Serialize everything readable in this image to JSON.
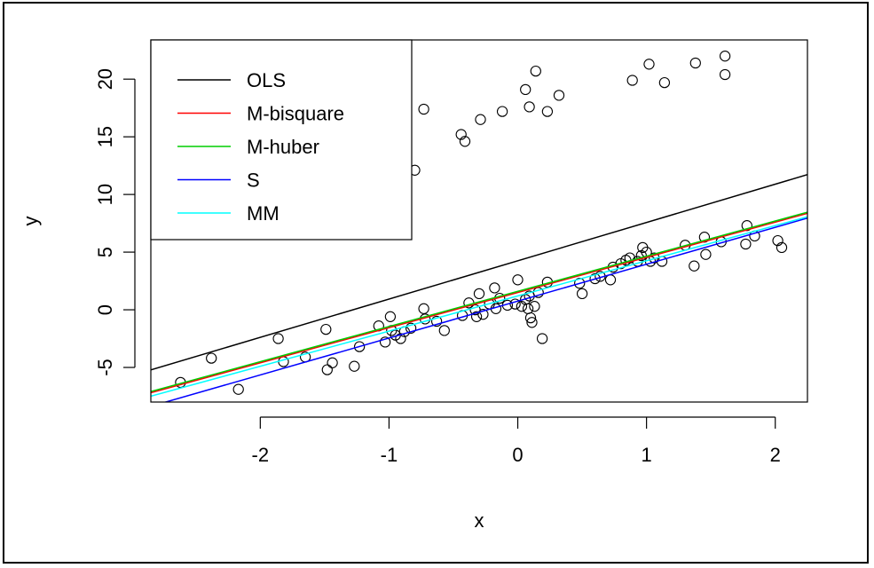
{
  "chart_data": {
    "type": "scatter",
    "title": "",
    "xlabel": "x",
    "ylabel": "y",
    "xlim": [
      -2.85,
      2.25
    ],
    "ylim": [
      -8.0,
      23.4
    ],
    "xticks": [
      -2,
      -1,
      0,
      1,
      2
    ],
    "yticks": [
      -5,
      0,
      5,
      10,
      15,
      20
    ],
    "xtick_labels": [
      "-2",
      "-1",
      "0",
      "1",
      "2"
    ],
    "ytick_labels": [
      "-5",
      "0",
      "5",
      "10",
      "15",
      "20"
    ],
    "grid": false,
    "legend_position": "top-left",
    "point_color": "#000000",
    "points": [
      {
        "x": -2.62,
        "y": -6.3
      },
      {
        "x": -2.38,
        "y": -4.2
      },
      {
        "x": -2.17,
        "y": -6.9
      },
      {
        "x": -1.86,
        "y": -2.5
      },
      {
        "x": -1.82,
        "y": -4.5
      },
      {
        "x": -1.65,
        "y": -4.1
      },
      {
        "x": -1.49,
        "y": -1.7
      },
      {
        "x": -1.48,
        "y": -5.2
      },
      {
        "x": -1.44,
        "y": -4.6
      },
      {
        "x": -1.27,
        "y": -4.9
      },
      {
        "x": -1.23,
        "y": -3.2
      },
      {
        "x": -1.08,
        "y": -1.4
      },
      {
        "x": -1.03,
        "y": -2.8
      },
      {
        "x": -0.99,
        "y": -0.6
      },
      {
        "x": -0.98,
        "y": -1.8
      },
      {
        "x": -0.95,
        "y": -2.2
      },
      {
        "x": -0.91,
        "y": -2.5
      },
      {
        "x": -0.88,
        "y": -1.9
      },
      {
        "x": -0.83,
        "y": -1.6
      },
      {
        "x": -0.73,
        "y": 0.1
      },
      {
        "x": -0.72,
        "y": -0.8
      },
      {
        "x": -0.63,
        "y": -1.0
      },
      {
        "x": -0.57,
        "y": -1.8
      },
      {
        "x": -0.43,
        "y": -0.5
      },
      {
        "x": -0.38,
        "y": 0.6
      },
      {
        "x": -0.33,
        "y": 0.0
      },
      {
        "x": -0.32,
        "y": -0.6
      },
      {
        "x": -0.3,
        "y": 1.4
      },
      {
        "x": -0.27,
        "y": -0.4
      },
      {
        "x": -0.22,
        "y": 0.5
      },
      {
        "x": -0.18,
        "y": 1.9
      },
      {
        "x": -0.17,
        "y": 0.1
      },
      {
        "x": -0.14,
        "y": 1.0
      },
      {
        "x": -0.08,
        "y": 0.4
      },
      {
        "x": -0.02,
        "y": 0.5
      },
      {
        "x": 0.0,
        "y": 2.6
      },
      {
        "x": 0.03,
        "y": 0.3
      },
      {
        "x": 0.06,
        "y": 0.9
      },
      {
        "x": 0.08,
        "y": 0.1
      },
      {
        "x": 0.09,
        "y": 1.2
      },
      {
        "x": 0.1,
        "y": -0.7
      },
      {
        "x": 0.11,
        "y": -1.1
      },
      {
        "x": 0.13,
        "y": 0.3
      },
      {
        "x": 0.16,
        "y": 1.5
      },
      {
        "x": 0.19,
        "y": -2.5
      },
      {
        "x": 0.23,
        "y": 2.4
      },
      {
        "x": 0.48,
        "y": 2.3
      },
      {
        "x": 0.5,
        "y": 1.4
      },
      {
        "x": 0.6,
        "y": 2.7
      },
      {
        "x": 0.64,
        "y": 2.9
      },
      {
        "x": 0.72,
        "y": 2.6
      },
      {
        "x": 0.74,
        "y": 3.7
      },
      {
        "x": 0.8,
        "y": 4.0
      },
      {
        "x": 0.84,
        "y": 4.3
      },
      {
        "x": 0.87,
        "y": 4.5
      },
      {
        "x": 0.93,
        "y": 4.2
      },
      {
        "x": 0.96,
        "y": 4.7
      },
      {
        "x": 0.97,
        "y": 5.4
      },
      {
        "x": 1.0,
        "y": 5.0
      },
      {
        "x": 1.03,
        "y": 4.2
      },
      {
        "x": 1.06,
        "y": 4.5
      },
      {
        "x": 1.12,
        "y": 4.2
      },
      {
        "x": 1.3,
        "y": 5.6
      },
      {
        "x": 1.37,
        "y": 3.8
      },
      {
        "x": 1.45,
        "y": 6.3
      },
      {
        "x": 1.46,
        "y": 4.8
      },
      {
        "x": 1.58,
        "y": 5.9
      },
      {
        "x": 1.77,
        "y": 5.7
      },
      {
        "x": 1.78,
        "y": 7.3
      },
      {
        "x": 1.84,
        "y": 6.4
      },
      {
        "x": 2.02,
        "y": 6.0
      },
      {
        "x": 2.05,
        "y": 5.4
      },
      {
        "x": -0.8,
        "y": 12.1
      },
      {
        "x": -0.73,
        "y": 17.4
      },
      {
        "x": -0.44,
        "y": 15.2
      },
      {
        "x": -0.41,
        "y": 14.6
      },
      {
        "x": -0.29,
        "y": 16.5
      },
      {
        "x": -0.12,
        "y": 17.2
      },
      {
        "x": 0.06,
        "y": 19.1
      },
      {
        "x": 0.09,
        "y": 17.6
      },
      {
        "x": 0.14,
        "y": 20.7
      },
      {
        "x": 0.23,
        "y": 17.2
      },
      {
        "x": 0.32,
        "y": 18.6
      },
      {
        "x": 0.89,
        "y": 19.9
      },
      {
        "x": 1.02,
        "y": 21.3
      },
      {
        "x": 1.14,
        "y": 19.7
      },
      {
        "x": 1.38,
        "y": 21.4
      },
      {
        "x": 1.61,
        "y": 22.0
      },
      {
        "x": 1.61,
        "y": 20.4
      }
    ],
    "series": [
      {
        "name": "OLS",
        "color": "#000000",
        "intercept": 4.25,
        "slope": 3.32
      },
      {
        "name": "M-bisquare",
        "color": "#ff0000",
        "intercept": 1.5,
        "slope": 3.05
      },
      {
        "name": "M-huber",
        "color": "#00cd00",
        "intercept": 1.6,
        "slope": 3.05
      },
      {
        "name": "S",
        "color": "#0000ff",
        "intercept": 0.75,
        "slope": 3.2
      },
      {
        "name": "MM",
        "color": "#00ffff",
        "intercept": 1.2,
        "slope": 3.05
      }
    ]
  }
}
